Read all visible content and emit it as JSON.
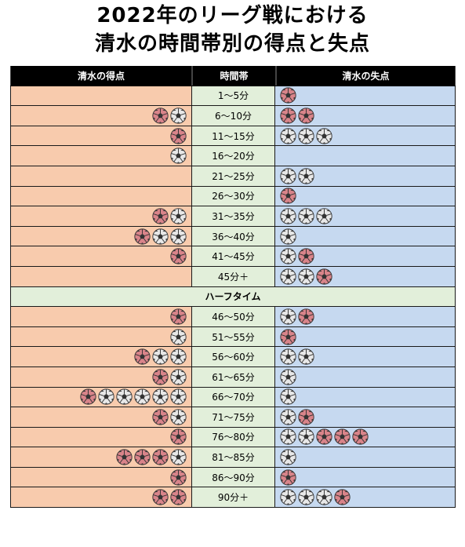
{
  "title_line1": "2022年のリーグ戦における",
  "title_line2": "清水の時間帯別の得点と失点",
  "colors": {
    "goals_bg": "#f8cbad",
    "time_bg": "#e2efda",
    "conceded_bg": "#c6d9f0",
    "ball_red": "#d9848a",
    "ball_white": "#e8e8e8"
  },
  "chart_data": {
    "type": "table",
    "columns": [
      "清水の得点",
      "時間帯",
      "清水の失点"
    ],
    "ball_legend": {
      "r": "red ball",
      "w": "white ball"
    },
    "halftime_label": "ハーフタイム",
    "rows": [
      {
        "time": "1～5分",
        "goals": "",
        "conceded": "r"
      },
      {
        "time": "6～10分",
        "goals": "rw",
        "conceded": "rr"
      },
      {
        "time": "11～15分",
        "goals": "r",
        "conceded": "www"
      },
      {
        "time": "16～20分",
        "goals": "w",
        "conceded": ""
      },
      {
        "time": "21～25分",
        "goals": "",
        "conceded": "ww"
      },
      {
        "time": "26～30分",
        "goals": "",
        "conceded": "r"
      },
      {
        "time": "31～35分",
        "goals": "rw",
        "conceded": "www"
      },
      {
        "time": "36～40分",
        "goals": "rww",
        "conceded": "w"
      },
      {
        "time": "41～45分",
        "goals": "r",
        "conceded": "wr"
      },
      {
        "time": "45分＋",
        "goals": "",
        "conceded": "wwr"
      },
      {
        "halftime": true
      },
      {
        "time": "46～50分",
        "goals": "r",
        "conceded": "wr"
      },
      {
        "time": "51～55分",
        "goals": "w",
        "conceded": "r"
      },
      {
        "time": "56～60分",
        "goals": "rww",
        "conceded": "ww"
      },
      {
        "time": "61～65分",
        "goals": "rw",
        "conceded": "w"
      },
      {
        "time": "66～70分",
        "goals": "rwwwww",
        "conceded": "w"
      },
      {
        "time": "71～75分",
        "goals": "rw",
        "conceded": "wr"
      },
      {
        "time": "76～80分",
        "goals": "r",
        "conceded": "wwrrr"
      },
      {
        "time": "81～85分",
        "goals": "rrrw",
        "conceded": "w"
      },
      {
        "time": "86～90分",
        "goals": "r",
        "conceded": "r"
      },
      {
        "time": "90分＋",
        "goals": "rr",
        "conceded": "wwwr"
      }
    ]
  }
}
